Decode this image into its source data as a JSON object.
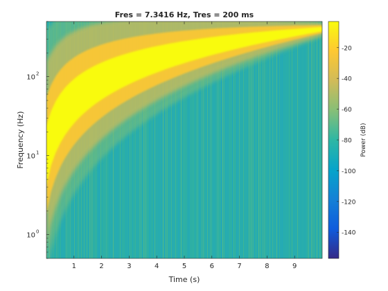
{
  "chart_data": {
    "type": "heatmap",
    "title": "Fres = 7.3416 Hz, Tres = 200 ms",
    "xlabel": "Time (s)",
    "ylabel": "Frequency (Hz)",
    "xlim": [
      0,
      10
    ],
    "ylim": [
      0.5,
      500
    ],
    "yscale": "log",
    "xticks": [
      1,
      2,
      3,
      4,
      5,
      6,
      7,
      8,
      9
    ],
    "yticks": [
      {
        "value": 1,
        "base": "10",
        "exp": "0"
      },
      {
        "value": 10,
        "base": "10",
        "exp": "1"
      },
      {
        "value": 100,
        "base": "10",
        "exp": "2"
      }
    ],
    "colorbar": {
      "label": "Power (dB)",
      "range": [
        -157,
        -3
      ],
      "ticks": [
        -20,
        -40,
        -60,
        -80,
        -100,
        -120,
        -140
      ],
      "colormap": "parula"
    },
    "ridge": {
      "description": "linear chirp",
      "time": [
        0,
        10
      ],
      "frequency_hz": [
        10,
        400
      ],
      "peak_power_db": -3
    },
    "background_power_db": -70
  },
  "colors": {
    "parula": [
      "#352a87",
      "#0f5cdd",
      "#1481d6",
      "#06a4ca",
      "#2eb7a4",
      "#87bf77",
      "#d1bb59",
      "#fec832",
      "#f9fb0e"
    ]
  }
}
